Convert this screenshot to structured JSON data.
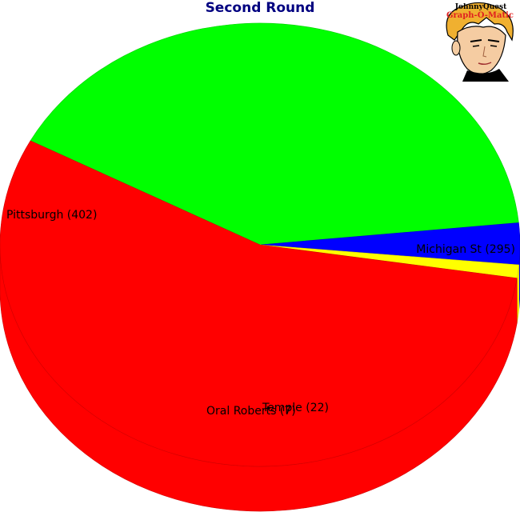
{
  "chart_data": {
    "type": "pie",
    "title": "Second Round",
    "style": "3d",
    "slices": [
      {
        "label": "Michigan St",
        "value": 295,
        "color": "#00ff00"
      },
      {
        "label": "Temple",
        "value": 22,
        "color": "#0000ff"
      },
      {
        "label": "Oral Roberts",
        "value": 7,
        "color": "#ffff00"
      },
      {
        "label": "Pittsburgh",
        "value": 402,
        "color": "#ff0000"
      }
    ]
  },
  "logo": {
    "line1": "JohnnyQuest",
    "line2": "Graph-O-Matic"
  }
}
